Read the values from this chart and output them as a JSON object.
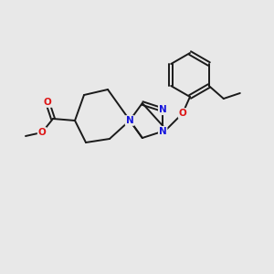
{
  "bg_color": "#e8e8e8",
  "bond_color": "#1a1a1a",
  "N_color": "#1515dd",
  "O_color": "#dd1515",
  "lw": 1.4,
  "fs": 7.5,
  "figsize": [
    3.0,
    3.0
  ],
  "dpi": 100,
  "xlim": [
    0,
    300
  ],
  "ylim": [
    0,
    300
  ]
}
